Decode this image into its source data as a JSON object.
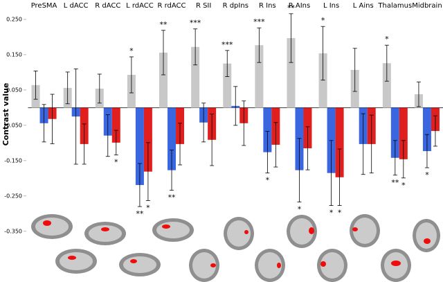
{
  "chart_data": {
    "type": "bar",
    "y_label": "Contrast value",
    "categories": [
      "PreSMA",
      "L dACC",
      "R dACC",
      "L rdACC",
      "R rdACC",
      "R SII",
      "R dpIns",
      "R Ins",
      "R AIns",
      "L Ins",
      "L Ains",
      "Thalamus",
      "Midbrain"
    ],
    "ylim": [
      -0.37,
      0.3
    ],
    "yticks": [
      {
        "value": 0.25,
        "label": "0.250"
      },
      {
        "value": 0.15,
        "label": "0.150"
      },
      {
        "value": 0.05,
        "label": "0.050"
      },
      {
        "value": -0.05,
        "label": "-0.050"
      },
      {
        "value": -0.15,
        "label": "-0.150"
      },
      {
        "value": -0.25,
        "label": "-0.250"
      },
      {
        "value": -0.35,
        "label": "-0.350"
      }
    ],
    "series": [
      {
        "color": "#c8c8c8",
        "values": [
          0.064,
          0.056,
          0.054,
          0.093,
          0.156,
          0.172,
          0.125,
          0.177,
          0.197,
          0.154,
          0.107,
          0.126,
          0.038
        ],
        "errors": [
          0.04,
          0.045,
          0.041,
          0.051,
          0.063,
          0.051,
          0.037,
          0.049,
          0.069,
          0.076,
          0.061,
          0.051,
          0.035
        ],
        "stars": [
          null,
          null,
          null,
          "*",
          "**",
          "***",
          "***",
          "***",
          "**",
          "*",
          null,
          "*",
          null
        ]
      },
      {
        "color": "#3a66e0",
        "values": [
          -0.044,
          -0.025,
          -0.079,
          -0.219,
          -0.177,
          -0.042,
          0.005,
          -0.126,
          -0.177,
          -0.185,
          -0.103,
          -0.142,
          -0.123
        ],
        "errors": [
          0.053,
          0.135,
          0.059,
          0.061,
          0.057,
          0.055,
          0.055,
          0.059,
          0.09,
          0.092,
          0.086,
          0.049,
          0.047
        ],
        "stars": [
          null,
          null,
          null,
          "**",
          "**",
          null,
          null,
          "*",
          "*",
          "*",
          null,
          "**",
          "*"
        ]
      },
      {
        "color": "#e0201e",
        "values": [
          -0.032,
          -0.103,
          -0.099,
          -0.181,
          -0.103,
          -0.091,
          -0.044,
          -0.105,
          -0.115,
          -0.197,
          -0.103,
          -0.146,
          -0.066
        ],
        "errors": [
          0.07,
          0.057,
          0.035,
          0.082,
          0.059,
          0.073,
          0.063,
          0.063,
          0.061,
          0.08,
          0.082,
          0.053,
          0.043
        ],
        "stars": [
          null,
          null,
          "*",
          "*",
          null,
          null,
          null,
          null,
          null,
          "*",
          null,
          "*",
          null
        ]
      }
    ]
  }
}
